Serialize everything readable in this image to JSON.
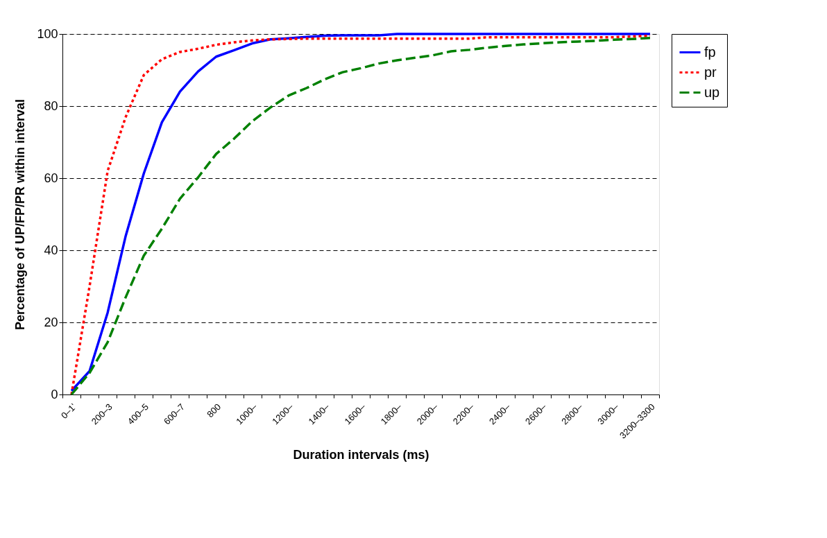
{
  "chart_data": {
    "type": "line",
    "xlabel": "Duration intervals (ms)",
    "ylabel": "Percentage of UP/FP/PR within interval",
    "categories": [
      "0–1'",
      null,
      "200–3",
      null,
      "400–5",
      null,
      "600–7",
      null,
      "800",
      null,
      "1000–",
      null,
      "1200–",
      null,
      "1400–",
      null,
      "1600–",
      null,
      "1800–",
      null,
      "2000–",
      null,
      "2200–",
      null,
      "2400–",
      null,
      "2600–",
      null,
      "2800–",
      null,
      "3000–",
      null,
      "3200–3300"
    ],
    "series": [
      {
        "name": "fp",
        "color": "#0000ff",
        "line_style": "solid",
        "values": [
          1,
          6.5,
          22.7,
          44,
          61.3,
          75.5,
          84,
          89.6,
          93.7,
          95.5,
          97.4,
          98.5,
          98.8,
          99.2,
          99.5,
          99.6,
          99.6,
          99.6,
          100,
          100,
          100,
          100,
          100,
          100,
          100,
          100,
          100,
          100,
          100,
          100,
          100,
          100,
          100
        ]
      },
      {
        "name": "pr",
        "color": "#ff0000",
        "line_style": "dotted",
        "values": [
          0,
          30,
          62,
          77,
          88.6,
          93,
          95,
          95.9,
          97,
          97.7,
          98.2,
          98.5,
          98.6,
          98.7,
          98.7,
          98.7,
          98.7,
          98.7,
          98.7,
          98.7,
          98.7,
          98.7,
          98.7,
          99.1,
          99.1,
          99.1,
          99.1,
          99.1,
          99.1,
          99.1,
          99.1,
          99.3,
          99.5
        ]
      },
      {
        "name": "up",
        "color": "#008000",
        "line_style": "dashed",
        "values": [
          0,
          6,
          14.5,
          27,
          38.5,
          46,
          54.3,
          60.2,
          66.7,
          71,
          75.8,
          79.6,
          82.9,
          85,
          87.4,
          89.4,
          90.5,
          91.8,
          92.7,
          93.4,
          94.1,
          95.2,
          95.6,
          96.2,
          96.7,
          97.1,
          97.4,
          97.7,
          97.9,
          98.1,
          98.4,
          98.6,
          98.9
        ]
      }
    ],
    "ylim": [
      0,
      100
    ],
    "yticks": [
      0,
      20,
      40,
      60,
      80,
      100
    ],
    "grid": "y",
    "legend": "right",
    "marker": "none"
  }
}
